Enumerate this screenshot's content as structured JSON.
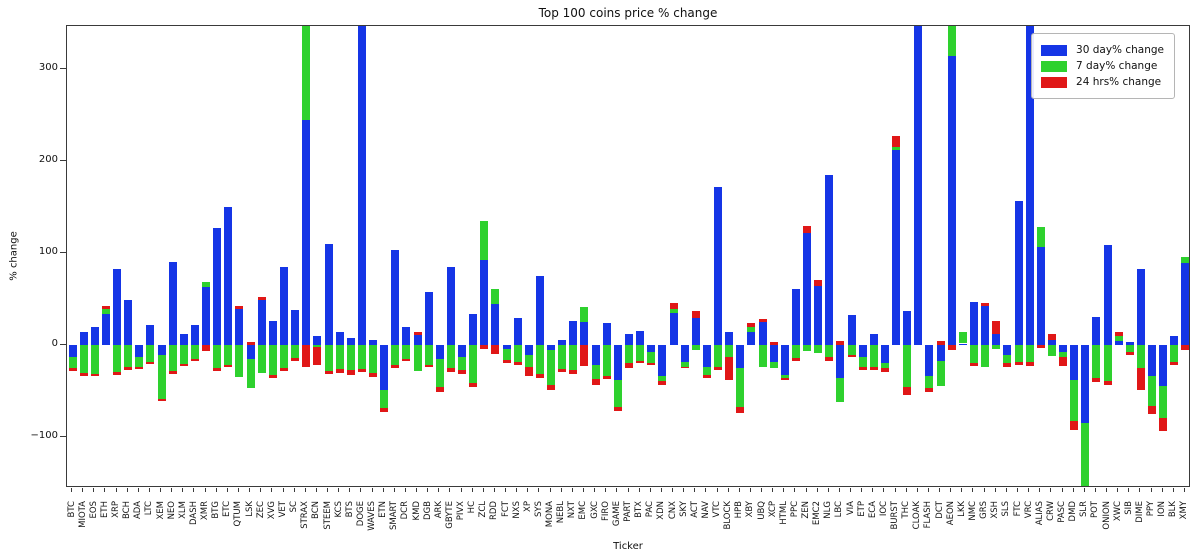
{
  "title": "Top 100 coins price % change",
  "axis_labels": {
    "x": "Ticker",
    "y": "% change"
  },
  "colors": {
    "blue_30d": "#1535e6",
    "green_7d": "#2ed12e",
    "red_24h": "#e01717",
    "spine": "#3a3a3a",
    "background": "#ffffff"
  },
  "legend": {
    "entries": [
      {
        "label": "30 day% change",
        "color": "#1535e6"
      },
      {
        "label": "7 day% change",
        "color": "#2ed12e"
      },
      {
        "label": "24 hrs% change",
        "color": "#e01717"
      }
    ]
  },
  "chart_data": {
    "type": "bar",
    "stacked": true,
    "stacking": "positives stack up from zero, negatives stack down from zero; bars exceeding ylim are clipped",
    "title": "Top 100 coins price % change",
    "xlabel": "Ticker",
    "ylabel": "% change",
    "ylim": [
      -155,
      347
    ],
    "yticks": [
      -100,
      0,
      100,
      200,
      300
    ],
    "grid": false,
    "legend_position": "upper right",
    "categories": [
      "BTC",
      "MIOTA",
      "EOS",
      "ETH",
      "XRP",
      "BCH",
      "ADA",
      "LTC",
      "XEM",
      "NEO",
      "XLM",
      "DASH",
      "XMR",
      "BTG",
      "ETC",
      "QTUM",
      "LSK",
      "ZEC",
      "XVG",
      "VET",
      "SC",
      "STRAX",
      "BCN",
      "STEEM",
      "KCS",
      "BTS",
      "DOGE",
      "WAVES",
      "ETN",
      "SMART",
      "DCR",
      "KMD",
      "DGB",
      "ARK",
      "GBYTE",
      "PIVX",
      "HC",
      "ZCL",
      "RDD",
      "FCT",
      "NXS",
      "XP",
      "SYS",
      "MONA",
      "NEBL",
      "NXT",
      "EMC",
      "GXC",
      "FIRO",
      "GAME",
      "PART",
      "BTX",
      "PAC",
      "XDN",
      "CNX",
      "SKY",
      "ACT",
      "NAV",
      "VTC",
      "BLOCK",
      "HPB",
      "XBY",
      "UBQ",
      "XCP",
      "HTML",
      "PPC",
      "ZEN",
      "EMC2",
      "NLG",
      "LBC",
      "VIA",
      "ETP",
      "ECA",
      "IOC",
      "BURST",
      "THC",
      "CLOAK",
      "FLASH",
      "DCT",
      "AEON",
      "LKK",
      "NMC",
      "GRS",
      "XSH",
      "SLS",
      "FTC",
      "VRC",
      "ALIAS",
      "CRW",
      "PASC",
      "DMD",
      "SLR",
      "POT",
      "ONION",
      "XWC",
      "SIB",
      "DIME",
      "PPY",
      "ION",
      "BLK",
      "XMY"
    ],
    "series": [
      {
        "name": "30 day% change",
        "color": "#1535e6",
        "values": [
          -13,
          15,
          20,
          34,
          83,
          49,
          -13,
          22,
          -10,
          91,
          12,
          22,
          63,
          128,
          150,
          40,
          -15,
          49,
          27,
          85,
          38,
          245,
          10,
          110,
          15,
          8,
          400,
          6,
          -48,
          104,
          20,
          11,
          58,
          -15,
          85,
          -13,
          34,
          93,
          45,
          -4,
          30,
          -10,
          75,
          -5,
          6,
          26,
          25,
          -21,
          24,
          -38,
          12,
          16,
          -7,
          -33,
          35,
          -18,
          30,
          -23,
          172,
          15,
          -25,
          15,
          25,
          -18,
          -32,
          61,
          122,
          64,
          185,
          -35,
          33,
          -13,
          12,
          -19,
          212,
          37,
          400,
          -33,
          -17,
          314,
          2,
          47,
          43,
          12,
          -10,
          157,
          400,
          107,
          6,
          -7,
          -38,
          -84,
          31,
          109,
          5,
          4,
          83,
          -33,
          -44,
          10,
          89
        ]
      },
      {
        "name": "7 day% change",
        "color": "#2ed12e",
        "values": [
          -12,
          -30,
          -31,
          5,
          -29,
          -24,
          -11,
          -18,
          -48,
          -28,
          -20,
          -15,
          6,
          -25,
          -21,
          -34,
          -31,
          -30,
          -32,
          -25,
          -14,
          110,
          -2,
          -28,
          -26,
          -27,
          -26,
          -30,
          -20,
          -21,
          -15,
          -28,
          -21,
          -30,
          -25,
          -14,
          -41,
          42,
          16,
          -12,
          -18,
          -13,
          -31,
          -38,
          -26,
          -27,
          17,
          -16,
          -33,
          -29,
          -19,
          -17,
          -12,
          -6,
          5,
          -5,
          -5,
          -9,
          -23,
          -13,
          -42,
          5,
          -23,
          -7,
          -4,
          -14,
          -6,
          -8,
          -13,
          -27,
          -10,
          -10,
          -23,
          -6,
          3,
          -45,
          0,
          -13,
          -27,
          60,
          13,
          -19,
          -23,
          -4,
          -9,
          -18,
          -18,
          22,
          -12,
          -6,
          -44,
          -90,
          -36,
          -39,
          5,
          -7,
          -25,
          -33,
          -35,
          -18,
          7
        ]
      },
      {
        "name": "24 hrs% change",
        "color": "#e01717",
        "values": [
          -3,
          -3,
          -2,
          4,
          -3,
          -3,
          -2,
          -2,
          -3,
          -3,
          -2,
          -2,
          -6,
          -3,
          -3,
          3,
          4,
          3,
          -4,
          -3,
          -3,
          -23,
          -19,
          -3,
          -4,
          -5,
          -3,
          -4,
          -4,
          -4,
          -2,
          4,
          -3,
          -6,
          -4,
          -4,
          -4,
          -4,
          -9,
          -3,
          -3,
          -10,
          -4,
          -5,
          -3,
          -4,
          -22,
          -6,
          -4,
          -4,
          -6,
          -2,
          -2,
          -4,
          6,
          -2,
          7,
          -4,
          -4,
          -25,
          -7,
          4,
          4,
          4,
          -2,
          -3,
          8,
          7,
          -4,
          5,
          -3,
          -4,
          -4,
          -4,
          13,
          -9,
          0,
          -5,
          5,
          -5,
          0,
          -3,
          3,
          14,
          -4,
          -3,
          -4,
          -3,
          6,
          -9,
          -10,
          0,
          -4,
          -4,
          5,
          -3,
          -24,
          -9,
          -14,
          -3,
          -5
        ]
      }
    ]
  }
}
